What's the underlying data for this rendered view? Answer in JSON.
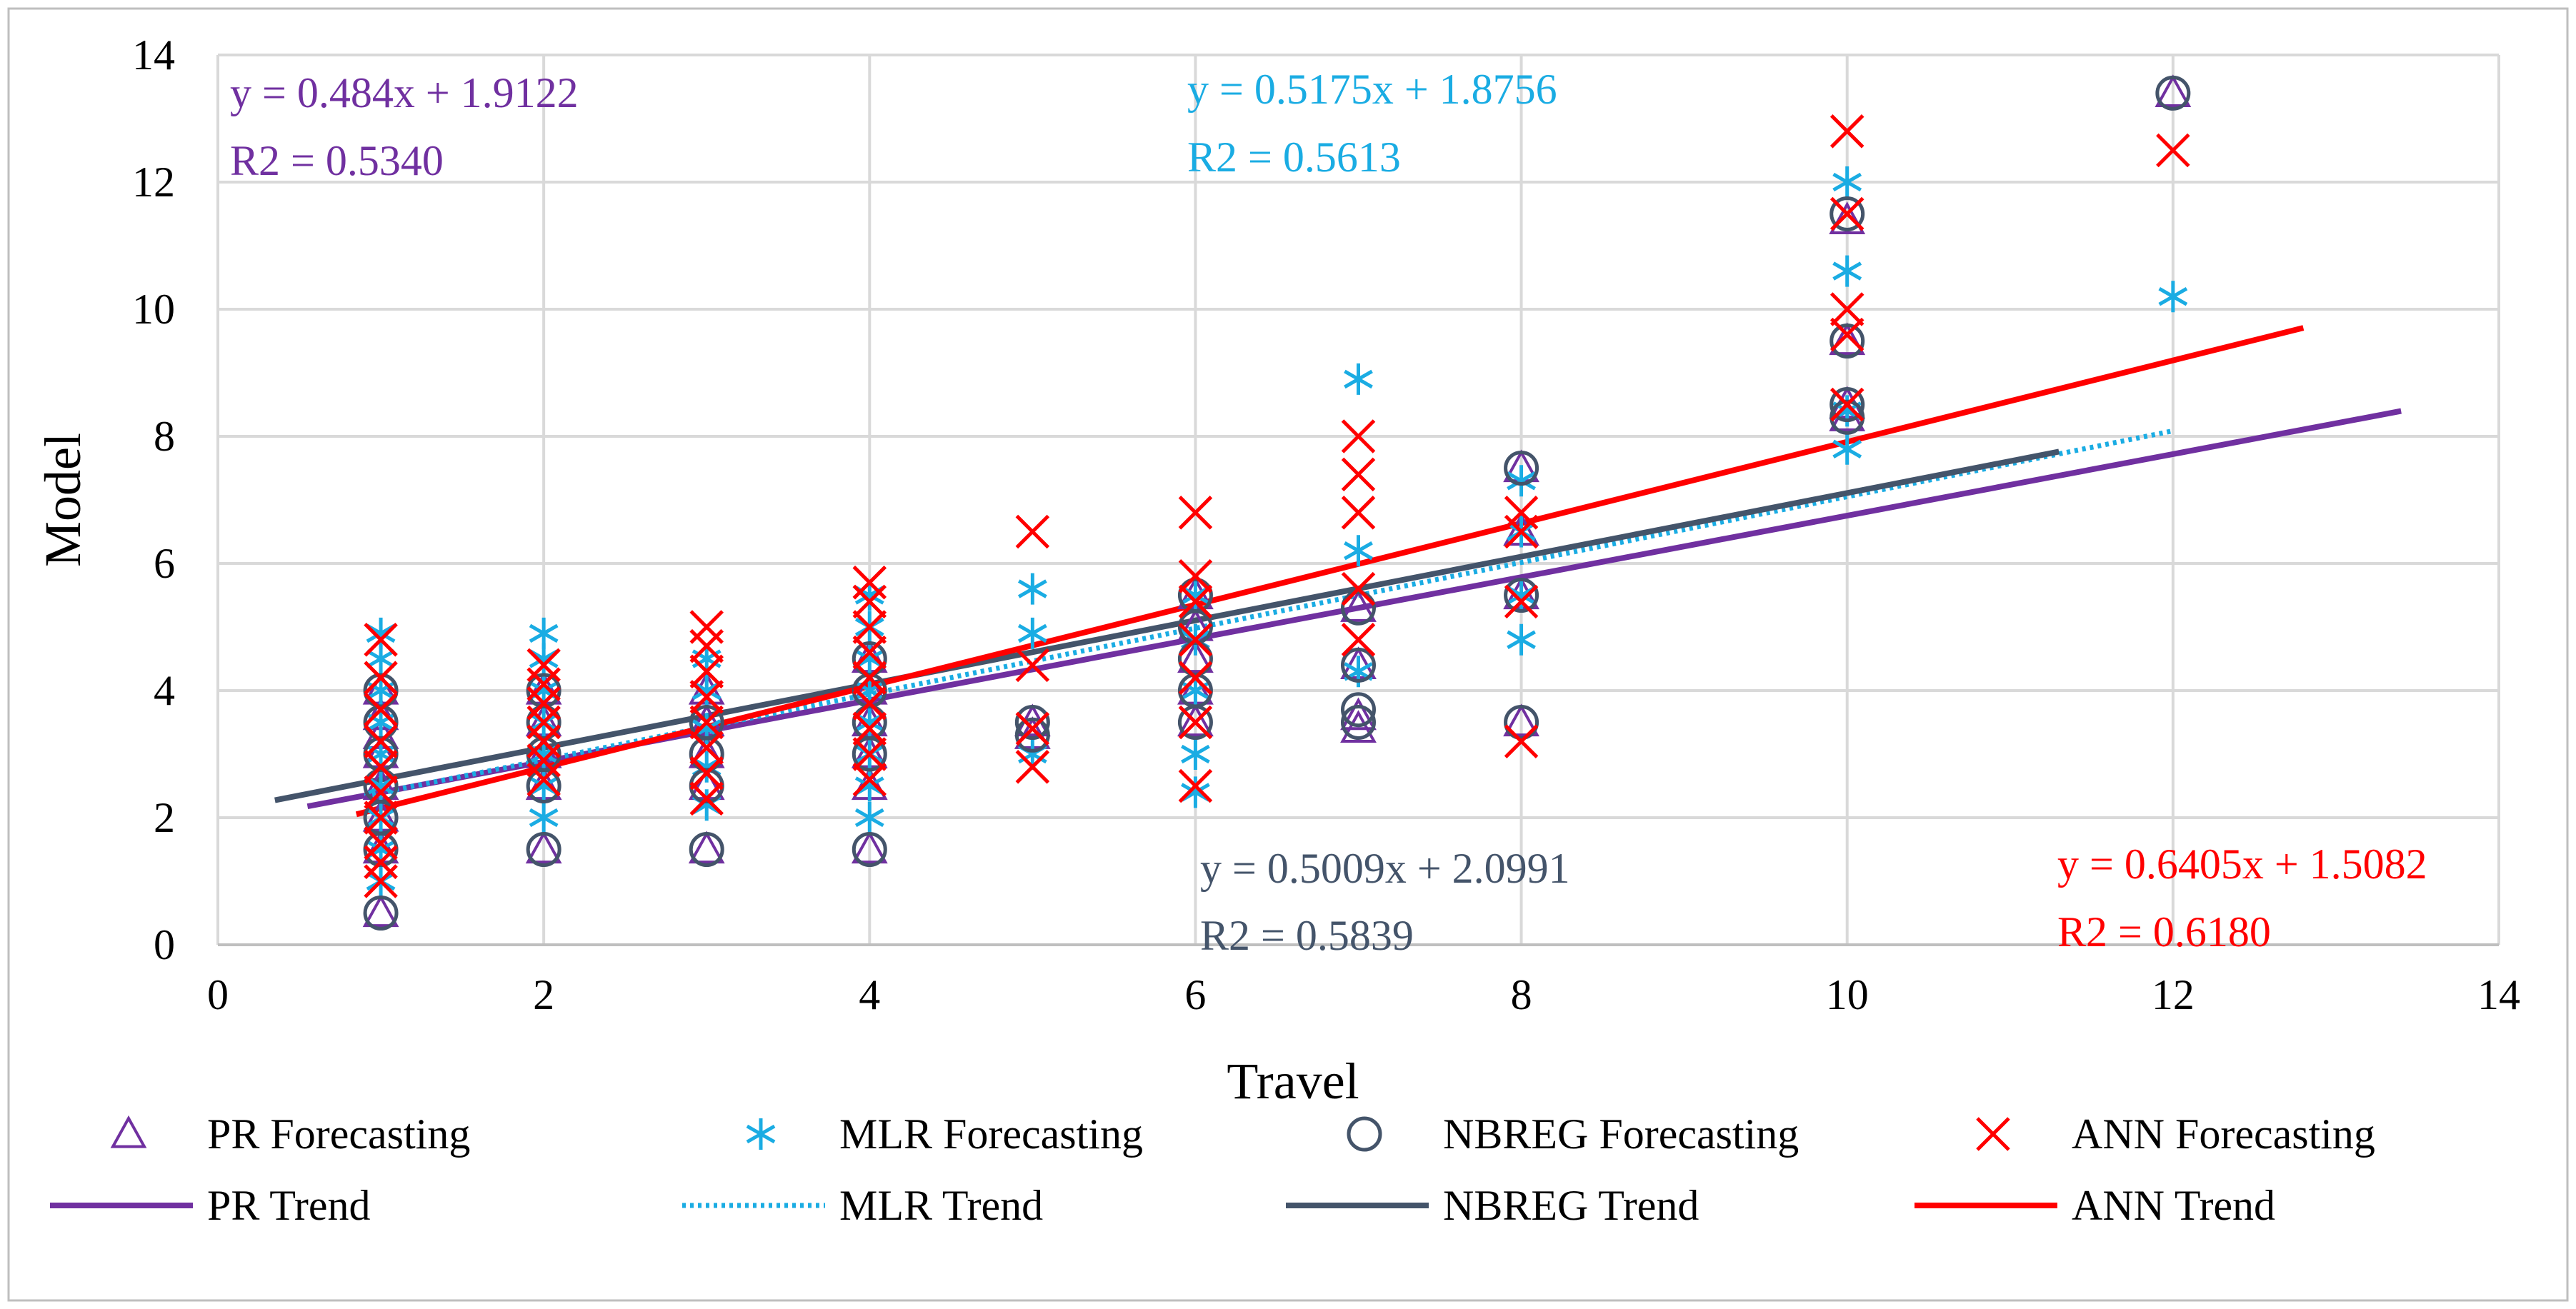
{
  "chart_data": {
    "type": "scatter",
    "xlabel": "Travel",
    "ylabel": "Model",
    "xlim": [
      0,
      14
    ],
    "ylim": [
      0,
      14
    ],
    "xticks": [
      0,
      2,
      4,
      6,
      8,
      10,
      12,
      14
    ],
    "yticks": [
      0,
      2,
      4,
      6,
      8,
      10,
      12,
      14
    ],
    "grid": true,
    "legend_position": "bottom",
    "series": [
      {
        "name": "PR Forecasting",
        "marker": "triangle-open",
        "color": "#7030A0",
        "points": [
          [
            1,
            0.5
          ],
          [
            1,
            1.5
          ],
          [
            1,
            2.0
          ],
          [
            1,
            2.5
          ],
          [
            1,
            3.0
          ],
          [
            1,
            3.3
          ],
          [
            1,
            3.6
          ],
          [
            1,
            4.0
          ],
          [
            2,
            1.5
          ],
          [
            2,
            2.5
          ],
          [
            2,
            3.0
          ],
          [
            2,
            3.5
          ],
          [
            2,
            4.0
          ],
          [
            3,
            1.5
          ],
          [
            3,
            2.5
          ],
          [
            3,
            3.0
          ],
          [
            3,
            3.5
          ],
          [
            3,
            4.0
          ],
          [
            4,
            1.5
          ],
          [
            4,
            2.5
          ],
          [
            4,
            3.0
          ],
          [
            4,
            3.5
          ],
          [
            4,
            4.0
          ],
          [
            4,
            4.5
          ],
          [
            5,
            3.3
          ],
          [
            5,
            3.5
          ],
          [
            6,
            3.5
          ],
          [
            6,
            4.0
          ],
          [
            6,
            4.5
          ],
          [
            6,
            5.0
          ],
          [
            6,
            5.5
          ],
          [
            7,
            3.4
          ],
          [
            7,
            3.6
          ],
          [
            7,
            4.4
          ],
          [
            7,
            5.3
          ],
          [
            8,
            3.5
          ],
          [
            8,
            5.5
          ],
          [
            8,
            6.5
          ],
          [
            8,
            7.5
          ],
          [
            10,
            8.3
          ],
          [
            10,
            8.5
          ],
          [
            10,
            9.5
          ],
          [
            10,
            11.4
          ],
          [
            12,
            13.4
          ]
        ]
      },
      {
        "name": "MLR Forecasting",
        "marker": "asterisk",
        "color": "#1AACE3",
        "points": [
          [
            1,
            1.0
          ],
          [
            1,
            1.5
          ],
          [
            1,
            2.0
          ],
          [
            1,
            2.5
          ],
          [
            1,
            3.0
          ],
          [
            1,
            3.5
          ],
          [
            1,
            4.0
          ],
          [
            1,
            4.5
          ],
          [
            1,
            4.9
          ],
          [
            2,
            2.0
          ],
          [
            2,
            2.5
          ],
          [
            2,
            3.0
          ],
          [
            2,
            3.5
          ],
          [
            2,
            4.0
          ],
          [
            2,
            4.5
          ],
          [
            2,
            4.9
          ],
          [
            3,
            2.2
          ],
          [
            3,
            2.8
          ],
          [
            3,
            3.4
          ],
          [
            3,
            4.0
          ],
          [
            3,
            4.5
          ],
          [
            4,
            2.0
          ],
          [
            4,
            2.5
          ],
          [
            4,
            3.0
          ],
          [
            4,
            3.5
          ],
          [
            4,
            4.0
          ],
          [
            4,
            4.5
          ],
          [
            4,
            5.0
          ],
          [
            4,
            5.5
          ],
          [
            5,
            3.0
          ],
          [
            5,
            4.9
          ],
          [
            5,
            5.6
          ],
          [
            6,
            2.4
          ],
          [
            6,
            3.0
          ],
          [
            6,
            4.0
          ],
          [
            6,
            4.8
          ],
          [
            6,
            5.5
          ],
          [
            7,
            4.3
          ],
          [
            7,
            6.2
          ],
          [
            7,
            8.9
          ],
          [
            8,
            4.8
          ],
          [
            8,
            5.5
          ],
          [
            8,
            6.5
          ],
          [
            8,
            7.3
          ],
          [
            10,
            7.8
          ],
          [
            10,
            8.4
          ],
          [
            10,
            10.6
          ],
          [
            10,
            12.0
          ],
          [
            12,
            10.2
          ]
        ]
      },
      {
        "name": "NBREG Forecasting",
        "marker": "circle-open",
        "color": "#44546A",
        "points": [
          [
            1,
            0.5
          ],
          [
            1,
            1.5
          ],
          [
            1,
            2.0
          ],
          [
            1,
            2.5
          ],
          [
            1,
            3.0
          ],
          [
            1,
            3.5
          ],
          [
            1,
            4.0
          ],
          [
            2,
            1.5
          ],
          [
            2,
            2.5
          ],
          [
            2,
            3.0
          ],
          [
            2,
            3.5
          ],
          [
            2,
            4.0
          ],
          [
            3,
            1.5
          ],
          [
            3,
            2.5
          ],
          [
            3,
            3.0
          ],
          [
            3,
            3.5
          ],
          [
            4,
            1.5
          ],
          [
            4,
            3.0
          ],
          [
            4,
            3.5
          ],
          [
            4,
            4.0
          ],
          [
            4,
            4.5
          ],
          [
            5,
            3.3
          ],
          [
            5,
            3.5
          ],
          [
            6,
            3.5
          ],
          [
            6,
            4.0
          ],
          [
            6,
            4.5
          ],
          [
            6,
            5.0
          ],
          [
            6,
            5.5
          ],
          [
            7,
            3.5
          ],
          [
            7,
            3.7
          ],
          [
            7,
            4.4
          ],
          [
            7,
            5.3
          ],
          [
            8,
            3.5
          ],
          [
            8,
            5.5
          ],
          [
            8,
            7.5
          ],
          [
            10,
            8.3
          ],
          [
            10,
            8.5
          ],
          [
            10,
            9.5
          ],
          [
            10,
            11.5
          ],
          [
            12,
            13.4
          ]
        ]
      },
      {
        "name": "ANN Forecasting",
        "marker": "x",
        "color": "#FF0000",
        "points": [
          [
            1,
            1.0
          ],
          [
            1,
            1.3
          ],
          [
            1,
            1.6
          ],
          [
            1,
            2.0
          ],
          [
            1,
            2.4
          ],
          [
            1,
            2.8
          ],
          [
            1,
            3.2
          ],
          [
            1,
            3.7
          ],
          [
            1,
            4.2
          ],
          [
            1,
            4.8
          ],
          [
            2,
            2.6
          ],
          [
            2,
            2.9
          ],
          [
            2,
            3.2
          ],
          [
            2,
            3.5
          ],
          [
            2,
            3.8
          ],
          [
            2,
            4.1
          ],
          [
            2,
            4.4
          ],
          [
            3,
            2.3
          ],
          [
            3,
            2.7
          ],
          [
            3,
            3.1
          ],
          [
            3,
            3.5
          ],
          [
            3,
            3.9
          ],
          [
            3,
            4.3
          ],
          [
            3,
            4.7
          ],
          [
            3,
            5.0
          ],
          [
            4,
            2.6
          ],
          [
            4,
            3.0
          ],
          [
            4,
            3.4
          ],
          [
            4,
            3.8
          ],
          [
            4,
            4.2
          ],
          [
            4,
            4.6
          ],
          [
            4,
            5.0
          ],
          [
            4,
            5.4
          ],
          [
            4,
            5.7
          ],
          [
            5,
            2.8
          ],
          [
            5,
            3.4
          ],
          [
            5,
            4.4
          ],
          [
            5,
            6.5
          ],
          [
            6,
            2.5
          ],
          [
            6,
            3.5
          ],
          [
            6,
            4.2
          ],
          [
            6,
            4.8
          ],
          [
            6,
            5.4
          ],
          [
            6,
            5.8
          ],
          [
            6,
            6.8
          ],
          [
            7,
            4.8
          ],
          [
            7,
            5.6
          ],
          [
            7,
            6.8
          ],
          [
            7,
            7.4
          ],
          [
            7,
            8.0
          ],
          [
            8,
            3.2
          ],
          [
            8,
            5.4
          ],
          [
            8,
            6.5
          ],
          [
            8,
            6.8
          ],
          [
            10,
            8.5
          ],
          [
            10,
            9.6
          ],
          [
            10,
            10.0
          ],
          [
            10,
            11.5
          ],
          [
            10,
            12.8
          ],
          [
            12,
            12.5
          ]
        ]
      }
    ],
    "trends": [
      {
        "name": "PR Trend",
        "color": "#7030A0",
        "style": "solid",
        "slope": 0.484,
        "intercept": 1.9122,
        "x_range": [
          0.55,
          13.4
        ],
        "equation": "y = 0.484x + 1.9122",
        "r2": "R2 = 0.5340"
      },
      {
        "name": "MLR Trend",
        "color": "#1AACE3",
        "style": "dotted",
        "slope": 0.5175,
        "intercept": 1.8756,
        "x_range": [
          0.9,
          12.0
        ],
        "equation": "y = 0.5175x + 1.8756",
        "r2": "R2 = 0.5613"
      },
      {
        "name": "NBREG Trend",
        "color": "#44546A",
        "style": "solid",
        "slope": 0.5009,
        "intercept": 2.0991,
        "x_range": [
          0.35,
          11.3
        ],
        "equation": "y = 0.5009x + 2.0991",
        "r2": "R2 = 0.5839"
      },
      {
        "name": "ANN Trend",
        "color": "#FF0000",
        "style": "solid",
        "slope": 0.6405,
        "intercept": 1.5082,
        "x_range": [
          0.85,
          12.8
        ],
        "equation": "y = 0.6405x + 1.5082",
        "r2": "R2 = 0.6180"
      }
    ]
  }
}
